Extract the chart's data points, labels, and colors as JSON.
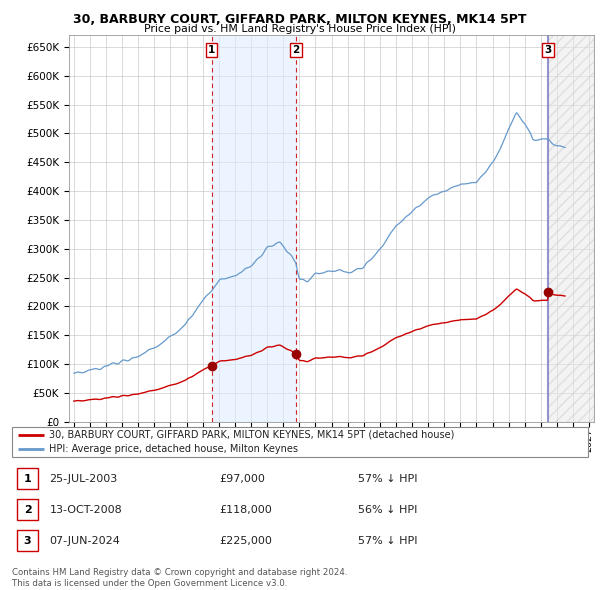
{
  "title": "30, BARBURY COURT, GIFFARD PARK, MILTON KEYNES, MK14 5PT",
  "subtitle": "Price paid vs. HM Land Registry's House Price Index (HPI)",
  "legend_property": "30, BARBURY COURT, GIFFARD PARK, MILTON KEYNES, MK14 5PT (detached house)",
  "legend_hpi": "HPI: Average price, detached house, Milton Keynes",
  "footer": "Contains HM Land Registry data © Crown copyright and database right 2024.\nThis data is licensed under the Open Government Licence v3.0.",
  "sales": [
    {
      "num": 1,
      "date": "25-JUL-2003",
      "price": 97000,
      "hpi_pct": "57% ↓ HPI"
    },
    {
      "num": 2,
      "date": "13-OCT-2008",
      "price": 118000,
      "hpi_pct": "56% ↓ HPI"
    },
    {
      "num": 3,
      "date": "07-JUN-2024",
      "price": 225000,
      "hpi_pct": "57% ↓ HPI"
    }
  ],
  "sale_years": [
    2003.56,
    2008.79,
    2024.44
  ],
  "sale_prices": [
    97000,
    118000,
    225000
  ],
  "property_color": "#cc0000",
  "hpi_color": "#6699cc",
  "hpi_fill_color": "#ddeeff",
  "sale_marker_color": "#990000",
  "ylim": [
    0,
    670000
  ],
  "yticks": [
    0,
    50000,
    100000,
    150000,
    200000,
    250000,
    300000,
    350000,
    400000,
    450000,
    500000,
    550000,
    600000,
    650000
  ],
  "xlim_start": 1994.7,
  "xlim_end": 2027.3,
  "xticks": [
    1995,
    1996,
    1997,
    1998,
    1999,
    2000,
    2001,
    2002,
    2003,
    2004,
    2005,
    2006,
    2007,
    2008,
    2009,
    2010,
    2011,
    2012,
    2013,
    2014,
    2015,
    2016,
    2017,
    2018,
    2019,
    2020,
    2021,
    2022,
    2023,
    2024,
    2025,
    2026,
    2027
  ],
  "grid_color": "#cccccc",
  "background_color": "#ffffff"
}
